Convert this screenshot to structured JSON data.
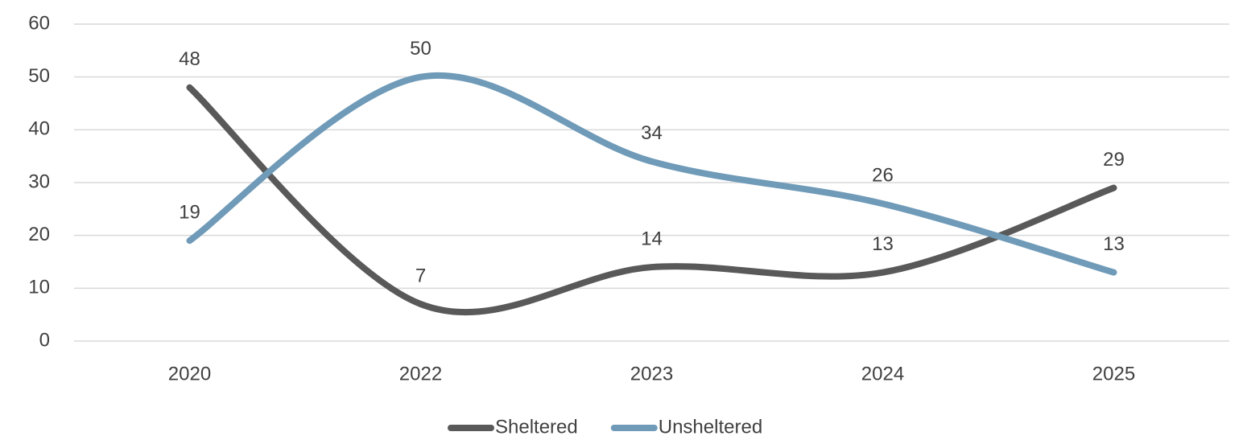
{
  "chart_data": {
    "type": "line",
    "categories": [
      "2020",
      "2022",
      "2023",
      "2024",
      "2025"
    ],
    "series": [
      {
        "name": "Sheltered",
        "color": "#595959",
        "values": [
          48,
          7,
          14,
          13,
          29
        ]
      },
      {
        "name": "Unsheltered",
        "color": "#6f9ab8",
        "values": [
          19,
          50,
          34,
          26,
          13
        ]
      }
    ],
    "ylim": [
      0,
      60
    ],
    "yticks": [
      0,
      10,
      20,
      30,
      40,
      50,
      60
    ],
    "grid": true,
    "smooth": true,
    "legend": "bottom"
  }
}
